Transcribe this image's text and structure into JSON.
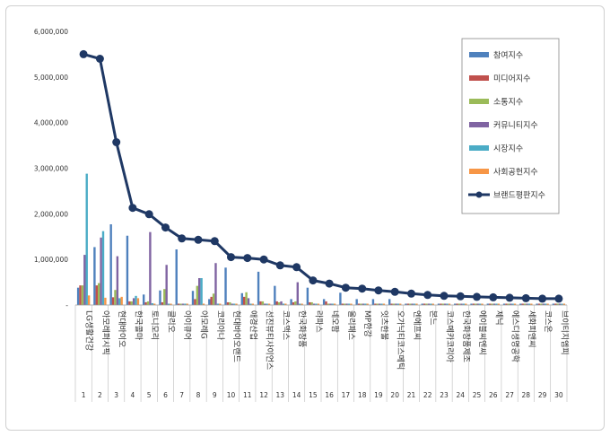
{
  "chart_data": {
    "type": "bar",
    "title": "",
    "xlabel": "",
    "ylabel": "",
    "ylim": [
      0,
      6000000
    ],
    "y_ticks": [
      "-",
      "1,000,000",
      "2,000,000",
      "3,000,000",
      "4,000,000",
      "5,000,000",
      "6,000,000"
    ],
    "grid": false,
    "legend_position": "top-right",
    "categories": [
      "LG생활건강",
      "아모레퍼시픽",
      "현대바이오",
      "한국콜마",
      "토니모리",
      "클리오",
      "아이큐어",
      "아모레G",
      "코리아나",
      "현대바이오랜드",
      "애경산업",
      "선진뷰티사이언스",
      "코스맥스",
      "한국화장품",
      "라파스",
      "네오팜",
      "올리패스",
      "MP한강",
      "잇츠한불",
      "오가닉티코스메틱",
      "엔에프씨",
      "본느",
      "코스메카코리아",
      "한국화장품제조",
      "에이블씨엔씨",
      "제닉",
      "에스디생명공학",
      "세화피앤씨",
      "코스온",
      "브이티지엠피"
    ],
    "ranks": [
      "1",
      "2",
      "3",
      "4",
      "5",
      "6",
      "7",
      "8",
      "9",
      "10",
      "11",
      "12",
      "13",
      "14",
      "15",
      "16",
      "17",
      "18",
      "19",
      "20",
      "21",
      "22",
      "23",
      "24",
      "25",
      "26",
      "27",
      "28",
      "29",
      "30"
    ],
    "series": [
      {
        "name": "참여지수",
        "color": "#4f81bd",
        "kind": "bar",
        "values": [
          380000,
          1270000,
          1770000,
          1520000,
          230000,
          320000,
          1220000,
          310000,
          130000,
          820000,
          260000,
          730000,
          420000,
          130000,
          380000,
          130000,
          270000,
          130000,
          130000,
          130000,
          30000,
          30000,
          30000,
          30000,
          30000,
          30000,
          30000,
          30000,
          30000,
          30000
        ]
      },
      {
        "name": "미디어지수",
        "color": "#c0504d",
        "kind": "bar",
        "values": [
          430000,
          430000,
          170000,
          80000,
          60000,
          60000,
          30000,
          130000,
          180000,
          60000,
          180000,
          80000,
          80000,
          60000,
          60000,
          80000,
          30000,
          30000,
          30000,
          30000,
          30000,
          30000,
          30000,
          30000,
          30000,
          30000,
          30000,
          30000,
          30000,
          30000
        ]
      },
      {
        "name": "소통지수",
        "color": "#9bbb59",
        "kind": "bar",
        "values": [
          430000,
          480000,
          330000,
          80000,
          80000,
          350000,
          30000,
          420000,
          250000,
          60000,
          280000,
          80000,
          60000,
          80000,
          60000,
          30000,
          30000,
          30000,
          30000,
          30000,
          30000,
          30000,
          30000,
          30000,
          30000,
          30000,
          30000,
          30000,
          30000,
          30000
        ]
      },
      {
        "name": "커뮤니티지수",
        "color": "#8064a2",
        "kind": "bar",
        "values": [
          1100000,
          1480000,
          1070000,
          150000,
          1600000,
          880000,
          30000,
          590000,
          920000,
          30000,
          150000,
          30000,
          80000,
          500000,
          30000,
          30000,
          30000,
          30000,
          30000,
          30000,
          30000,
          30000,
          30000,
          30000,
          30000,
          30000,
          30000,
          30000,
          30000,
          30000
        ]
      },
      {
        "name": "시장지수",
        "color": "#4bacc6",
        "kind": "bar",
        "values": [
          2880000,
          1620000,
          150000,
          200000,
          40000,
          30000,
          30000,
          590000,
          30000,
          30000,
          30000,
          30000,
          30000,
          30000,
          30000,
          30000,
          30000,
          30000,
          30000,
          30000,
          30000,
          30000,
          30000,
          30000,
          30000,
          30000,
          30000,
          30000,
          30000,
          30000
        ]
      },
      {
        "name": "사회공헌지수",
        "color": "#f79646",
        "kind": "bar",
        "values": [
          210000,
          160000,
          180000,
          150000,
          30000,
          30000,
          30000,
          30000,
          30000,
          30000,
          30000,
          30000,
          30000,
          30000,
          30000,
          30000,
          30000,
          30000,
          30000,
          30000,
          30000,
          30000,
          30000,
          30000,
          30000,
          30000,
          30000,
          30000,
          30000,
          30000
        ]
      },
      {
        "name": "브랜드평판지수",
        "color": "#1f3864",
        "kind": "line",
        "values": [
          5500000,
          5400000,
          3570000,
          2130000,
          1990000,
          1700000,
          1460000,
          1430000,
          1400000,
          1050000,
          1030000,
          1000000,
          870000,
          830000,
          540000,
          470000,
          380000,
          360000,
          320000,
          290000,
          250000,
          220000,
          200000,
          190000,
          180000,
          170000,
          160000,
          150000,
          140000,
          140000
        ]
      }
    ]
  }
}
